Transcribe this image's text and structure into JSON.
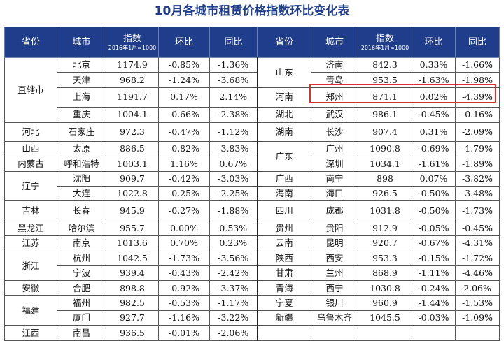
{
  "title": "10月各城市租赁价格指数环比变化表",
  "headers": {
    "province": "省份",
    "city": "城市",
    "index": "指数",
    "index_sub": "2016年1月=1000",
    "mom": "环比",
    "yoy": "同比"
  },
  "left": [
    {
      "province": "直辖市",
      "city": "北京",
      "index": "1174.9",
      "mom": "-0.85%",
      "yoy": "-1.36%"
    },
    {
      "province": "",
      "city": "天津",
      "index": "968.2",
      "mom": "-1.24%",
      "yoy": "-3.68%"
    },
    {
      "province": "",
      "city": "上海",
      "index": "1191.7",
      "mom": "0.17%",
      "yoy": "2.14%"
    },
    {
      "province": "",
      "city": "重庆",
      "index": "1004.1",
      "mom": "-0.66%",
      "yoy": "-2.38%"
    },
    {
      "province": "河北",
      "city": "石家庄",
      "index": "972.3",
      "mom": "-0.47%",
      "yoy": "-1.12%"
    },
    {
      "province": "山西",
      "city": "太原",
      "index": "886.5",
      "mom": "-0.82%",
      "yoy": "-3.83%"
    },
    {
      "province": "内蒙古",
      "city": "呼和浩特",
      "index": "1003.1",
      "mom": "1.16%",
      "yoy": "0.67%"
    },
    {
      "province": "辽宁",
      "city": "沈阳",
      "index": "909.7",
      "mom": "-0.42%",
      "yoy": "-3.03%"
    },
    {
      "province": "",
      "city": "大连",
      "index": "1022.8",
      "mom": "-0.25%",
      "yoy": "-2.25%"
    },
    {
      "province": "吉林",
      "city": "长春",
      "index": "945.9",
      "mom": "-0.27%",
      "yoy": "-1.88%"
    },
    {
      "province": "黑龙江",
      "city": "哈尔滨",
      "index": "955.7",
      "mom": "0.00%",
      "yoy": "0.53%"
    },
    {
      "province": "江苏",
      "city": "南京",
      "index": "1013.6",
      "mom": "0.70%",
      "yoy": "0.23%"
    },
    {
      "province": "浙江",
      "city": "杭州",
      "index": "1042.5",
      "mom": "-1.73%",
      "yoy": "-3.56%"
    },
    {
      "province": "",
      "city": "宁波",
      "index": "939.4",
      "mom": "-0.43%",
      "yoy": "-2.42%"
    },
    {
      "province": "安徽",
      "city": "合肥",
      "index": "898.8",
      "mom": "-0.92%",
      "yoy": "-3.37%"
    },
    {
      "province": "福建",
      "city": "福州",
      "index": "982.5",
      "mom": "-0.53%",
      "yoy": "-1.17%"
    },
    {
      "province": "",
      "city": "厦门",
      "index": "927.7",
      "mom": "-1.16%",
      "yoy": "-3.22%"
    },
    {
      "province": "江西",
      "city": "南昌",
      "index": "936.5",
      "mom": "-0.01%",
      "yoy": "-2.06%"
    }
  ],
  "right": [
    {
      "province": "山东",
      "city": "济南",
      "index": "842.3",
      "mom": "0.33%",
      "yoy": "-1.66%"
    },
    {
      "province": "",
      "city": "青岛",
      "index": "953.5",
      "mom": "-1.63%",
      "yoy": "-1.98%"
    },
    {
      "province": "河南",
      "city": "郑州",
      "index": "871.1",
      "mom": "0.02%",
      "yoy": "-4.39%"
    },
    {
      "province": "湖北",
      "city": "武汉",
      "index": "986.1",
      "mom": "-0.45%",
      "yoy": "-0.16%"
    },
    {
      "province": "湖南",
      "city": "长沙",
      "index": "907.4",
      "mom": "0.31%",
      "yoy": "-2.09%"
    },
    {
      "province": "广东",
      "city": "广州",
      "index": "1090.8",
      "mom": "-0.69%",
      "yoy": "-1.79%"
    },
    {
      "province": "",
      "city": "深圳",
      "index": "1034.1",
      "mom": "-1.61%",
      "yoy": "-1.89%"
    },
    {
      "province": "广西",
      "city": "南宁",
      "index": "898",
      "mom": "0.07%",
      "yoy": "-3.82%"
    },
    {
      "province": "海南",
      "city": "海口",
      "index": "926.5",
      "mom": "-0.50%",
      "yoy": "-3.48%"
    },
    {
      "province": "四川",
      "city": "成都",
      "index": "1031.8",
      "mom": "-0.50%",
      "yoy": "-1.73%"
    },
    {
      "province": "贵州",
      "city": "贵阳",
      "index": "912.9",
      "mom": "-0.05%",
      "yoy": "-0.45%"
    },
    {
      "province": "云南",
      "city": "昆明",
      "index": "920.7",
      "mom": "-0.67%",
      "yoy": "-4.31%"
    },
    {
      "province": "陕西",
      "city": "西安",
      "index": "953.3",
      "mom": "-0.15%",
      "yoy": "-1.72%"
    },
    {
      "province": "甘肃",
      "city": "兰州",
      "index": "868.9",
      "mom": "-1.11%",
      "yoy": "-4.46%"
    },
    {
      "province": "青海",
      "city": "西宁",
      "index": "1030.8",
      "mom": "-0.24%",
      "yoy": "2.06%"
    },
    {
      "province": "宁夏",
      "city": "银川",
      "index": "960.9",
      "mom": "-1.44%",
      "yoy": "-1.53%"
    },
    {
      "province": "新疆",
      "city": "乌鲁木齐",
      "index": "1045.5",
      "mom": "-0.03%",
      "yoy": "-1.09%"
    }
  ],
  "colors": {
    "header_bg": "#1f3d8a",
    "title": "#1f3d8a",
    "highlight": "#d9302b"
  }
}
